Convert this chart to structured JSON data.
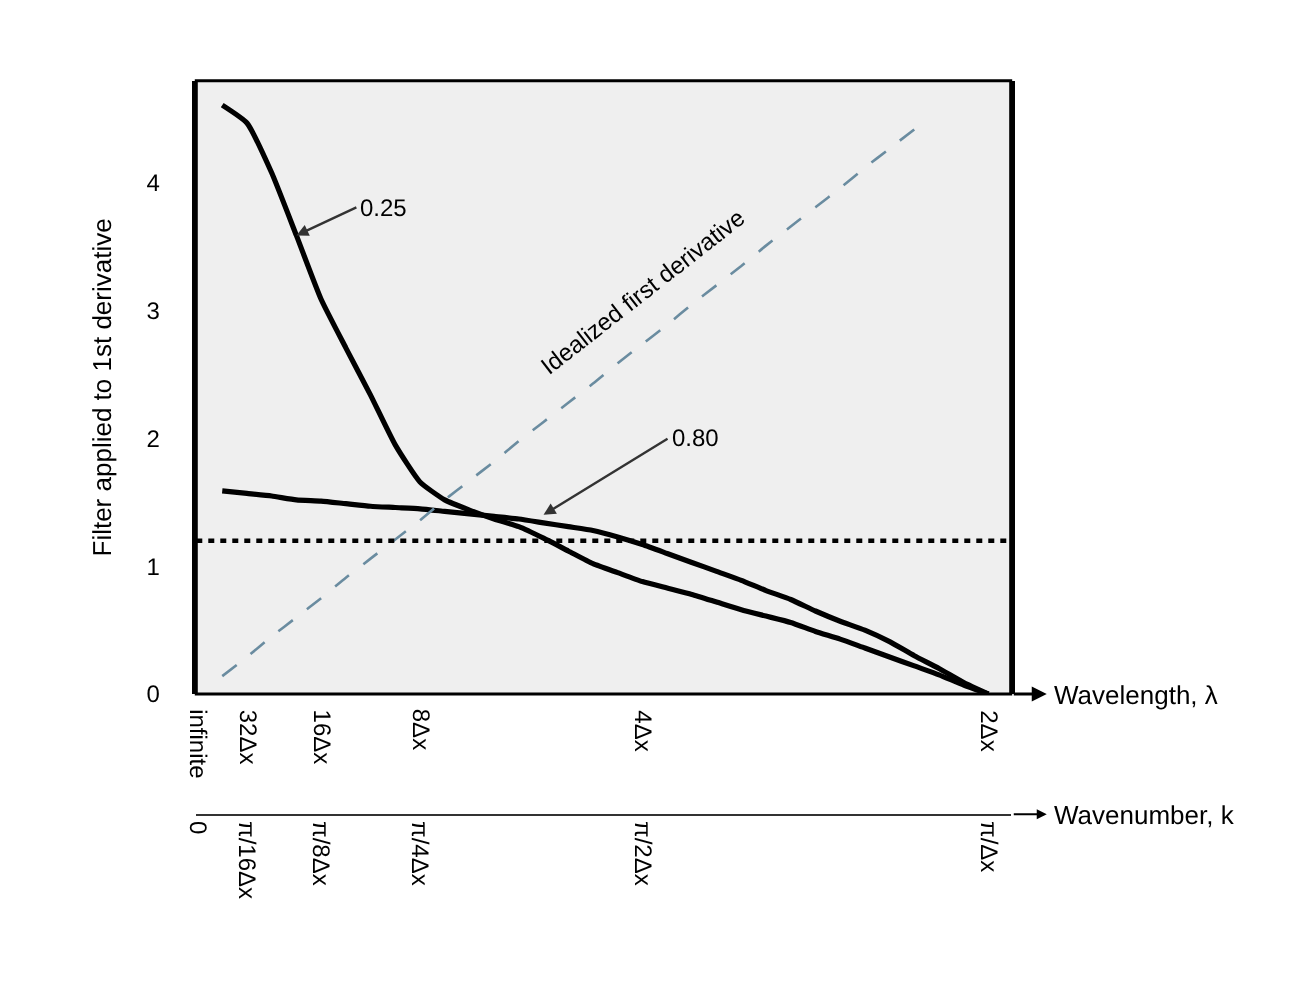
{
  "chart_data": {
    "type": "line",
    "ylabel": "Filter applied to 1st derivative",
    "xlabel": "Wavenumber, k",
    "x2label": "Wavelength, λ",
    "categories": [
      "0",
      null,
      "π/16Δx",
      null,
      null,
      "π/8Δx",
      null,
      null,
      null,
      "π/4Δx",
      null,
      null,
      null,
      null,
      null,
      null,
      null,
      null,
      "π/2Δx",
      null,
      null,
      null,
      null,
      null,
      null,
      null,
      null,
      null,
      null,
      null,
      null,
      null,
      "π/Δx"
    ],
    "ylim": [
      0,
      4.8
    ],
    "yticks": [
      0,
      1,
      2,
      3,
      4
    ],
    "grid": false,
    "series": [
      {
        "name": "0.25",
        "color": "#000000",
        "line_style": "solid",
        "values": [
          null,
          4.61,
          4.47,
          4.08,
          3.59,
          3.09,
          2.71,
          2.34,
          1.95,
          1.66,
          1.52,
          1.44,
          1.37,
          1.31,
          1.22,
          1.12,
          1.02,
          0.95,
          0.88,
          0.83,
          0.78,
          0.72,
          0.66,
          0.61,
          0.56,
          0.49,
          0.43,
          0.36,
          0.29,
          0.22,
          0.15,
          0.07,
          0
        ]
      },
      {
        "name": "0.80",
        "color": "#000000",
        "line_style": "solid",
        "values": [
          null,
          1.59,
          1.57,
          1.55,
          1.52,
          1.51,
          1.49,
          1.47,
          1.46,
          1.45,
          1.43,
          1.41,
          1.39,
          1.37,
          1.34,
          1.31,
          1.28,
          1.23,
          1.17,
          1.1,
          1.03,
          0.96,
          0.89,
          0.81,
          0.74,
          0.65,
          0.57,
          0.5,
          0.41,
          0.3,
          0.2,
          0.09,
          0
        ]
      },
      {
        "name": "Idealized first derivative",
        "color": "#6a8ca0",
        "line_style": "dashed",
        "values": [
          null,
          0.14,
          0.29,
          0.45,
          0.6,
          0.75,
          0.91,
          1.06,
          1.21,
          1.36,
          1.52,
          1.67,
          1.82,
          1.98,
          2.13,
          2.28,
          2.43,
          2.59,
          2.74,
          2.89,
          3.05,
          3.2,
          3.35,
          3.51,
          3.66,
          3.81,
          3.96,
          4.12,
          4.27,
          4.42,
          null,
          null,
          null
        ]
      }
    ],
    "ref_lines": [
      {
        "axis": "y",
        "value": 1.2,
        "color": "#000000",
        "line_style": "dotted"
      }
    ],
    "annotations": [
      "infinite",
      "32Δx",
      "16Δx",
      "8Δx",
      "4Δx",
      "2Δx"
    ]
  }
}
